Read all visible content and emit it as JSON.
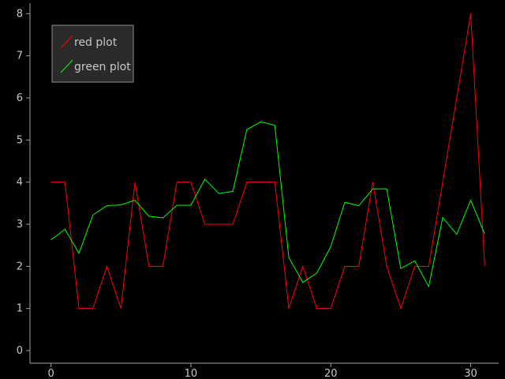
{
  "chart_data": {
    "type": "line",
    "x": [
      0,
      1,
      2,
      3,
      4,
      5,
      6,
      7,
      8,
      9,
      10,
      11,
      12,
      13,
      14,
      15,
      16,
      17,
      18,
      19,
      20,
      21,
      22,
      23,
      24,
      25,
      26,
      27,
      28,
      29,
      30,
      31
    ],
    "series": [
      {
        "name": "red plot",
        "color": "#ff0000",
        "values": [
          4,
          4,
          1,
          1,
          2,
          1,
          4,
          2,
          2,
          4,
          4,
          3,
          3,
          3,
          4,
          4,
          4,
          1,
          2,
          1,
          1,
          2,
          2,
          4,
          2,
          1,
          2,
          2,
          4,
          6,
          8,
          2
        ]
      },
      {
        "name": "green plot",
        "color": "#00ff00",
        "values": [
          2.63,
          2.88,
          2.31,
          3.22,
          3.44,
          3.46,
          3.57,
          3.19,
          3.15,
          3.45,
          3.45,
          4.07,
          3.73,
          3.78,
          5.25,
          5.43,
          5.35,
          2.21,
          1.62,
          1.84,
          2.47,
          3.52,
          3.44,
          3.84,
          3.84,
          1.95,
          2.13,
          1.52,
          3.16,
          2.76,
          3.57,
          2.77
        ]
      }
    ],
    "xlim": [
      -1.5,
      32
    ],
    "ylim": [
      -0.3,
      8.25
    ],
    "xticks": [
      0,
      10,
      20,
      30
    ],
    "yticks": [
      0,
      1,
      2,
      3,
      4,
      5,
      6,
      7,
      8
    ],
    "grid": false,
    "legend": "top-left",
    "colors": {
      "background": "#000000",
      "axis": "#a0a0a0",
      "legend_bg": "#2a2a2a",
      "legend_border": "#8c8c8c",
      "text": "#c8c8c8"
    }
  }
}
